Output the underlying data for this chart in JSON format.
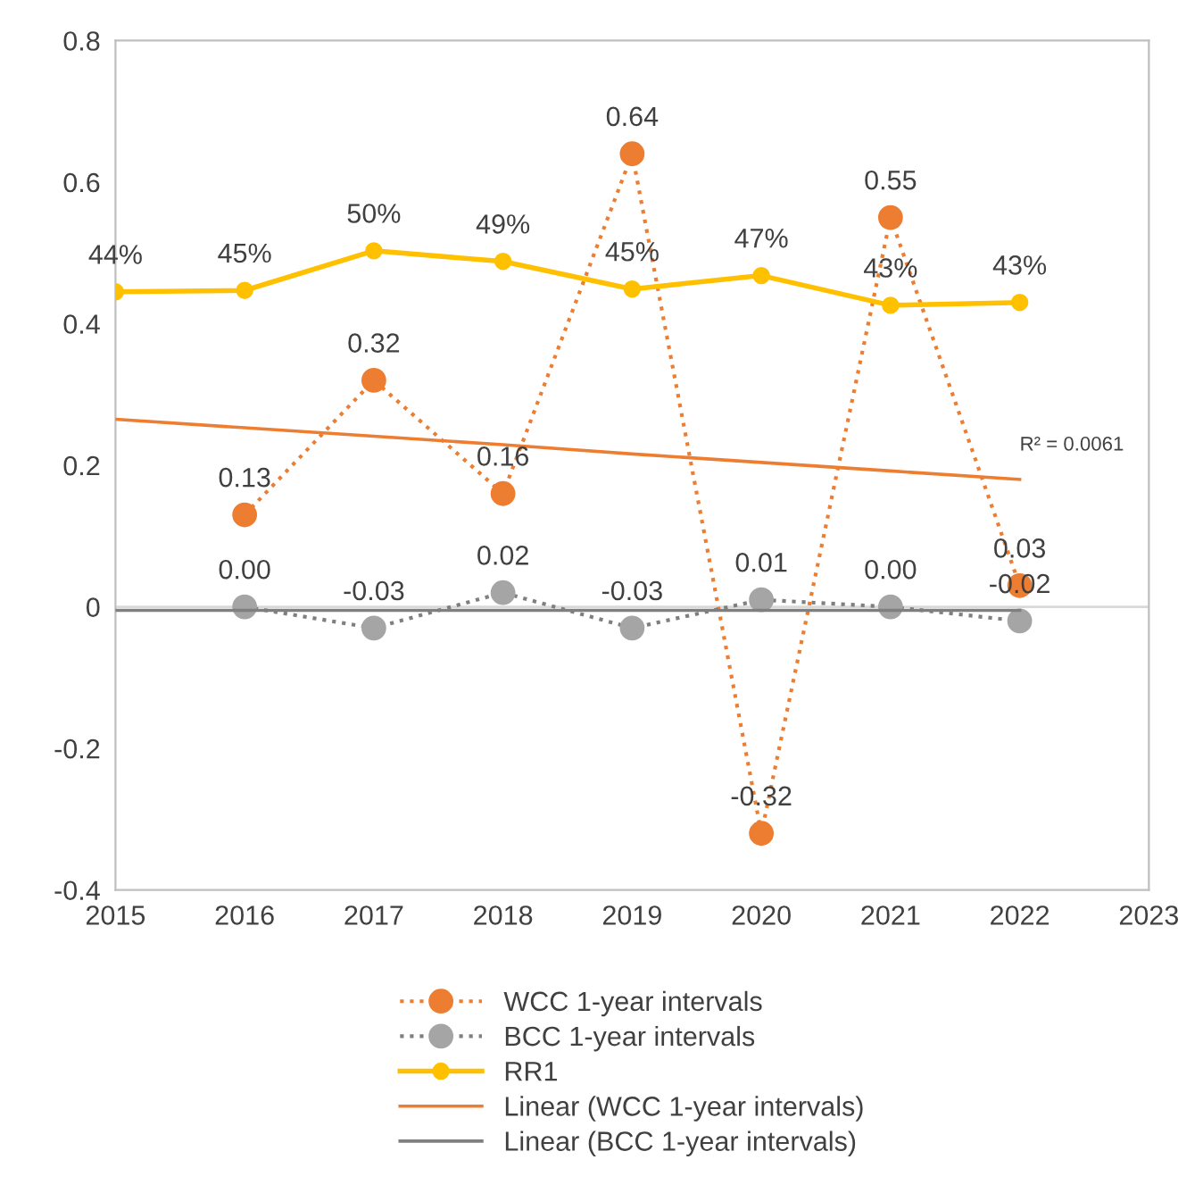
{
  "chart_data": {
    "type": "line",
    "x": [
      2015,
      2016,
      2017,
      2018,
      2019,
      2020,
      2021,
      2022
    ],
    "xlim": [
      2015,
      2023
    ],
    "xticks": [
      2015,
      2016,
      2017,
      2018,
      2019,
      2020,
      2021,
      2022,
      2023
    ],
    "ylim": [
      -0.4,
      0.8
    ],
    "yticks": [
      -0.4,
      -0.2,
      0,
      0.2,
      0.4,
      0.6,
      0.8
    ],
    "grid": false,
    "legend": "bottom",
    "ref_lines": [
      {
        "axis": "y",
        "value": 0,
        "color": "#d9d9d9"
      }
    ],
    "annotations": [
      {
        "text": "R² = 0.0061",
        "x": 2022,
        "y": 0.18
      }
    ],
    "series": [
      {
        "name": "WCC 1-year intervals",
        "color": "#ed7d31",
        "line_style": "dotted",
        "marker": "circle",
        "values": [
          null,
          0.13,
          0.32,
          0.16,
          0.64,
          -0.32,
          0.55,
          0.03
        ],
        "value_labels": [
          null,
          "0.13",
          "0.32",
          "0.16",
          "0.64",
          "-0.32",
          "0.55",
          "0.03"
        ]
      },
      {
        "name": "BCC 1-year intervals",
        "color": "#a5a5a5",
        "line_style": "dotted",
        "marker": "circle",
        "values": [
          null,
          0.0,
          -0.03,
          0.02,
          -0.03,
          0.01,
          0.0,
          -0.02
        ],
        "value_labels": [
          null,
          "0.00",
          "-0.03",
          "0.02",
          "-0.03",
          "0.01",
          "0.00",
          "-0.02"
        ]
      },
      {
        "name": "RR1",
        "color": "#ffc000",
        "line_style": "solid",
        "marker": "circle",
        "values": [
          0.445,
          0.447,
          0.503,
          0.488,
          0.449,
          0.468,
          0.426,
          0.43
        ],
        "value_labels": [
          "44%",
          "45%",
          "50%",
          "49%",
          "45%",
          "47%",
          "43%",
          "43%"
        ]
      },
      {
        "name": "Linear (WCC 1-year intervals)",
        "color": "#ed7d31",
        "line_style": "solid",
        "marker": "none",
        "values": [
          0.265,
          0.253,
          0.241,
          0.229,
          0.216,
          0.204,
          0.192,
          0.18
        ]
      },
      {
        "name": "Linear (BCC 1-year intervals)",
        "color": "#7f7f7f",
        "line_style": "solid",
        "marker": "none",
        "values": [
          -0.005,
          -0.005,
          -0.005,
          -0.005,
          -0.005,
          -0.005,
          -0.005,
          -0.005
        ]
      }
    ]
  }
}
